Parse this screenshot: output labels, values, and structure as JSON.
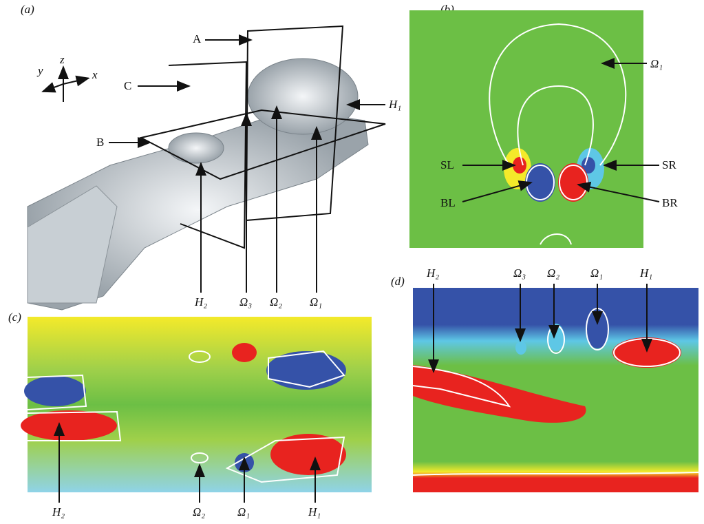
{
  "panels": [
    {
      "label": "(a)",
      "axes": [
        "y",
        "z",
        "x"
      ],
      "planes": [
        "A",
        "C",
        "B"
      ],
      "annotations": [
        "H₁",
        "H₂",
        "Ω₃",
        "Ω₂",
        "Ω₁"
      ]
    },
    {
      "label": "(b)",
      "annotations": [
        "Ω₁",
        "SL",
        "SR",
        "BL",
        "BR"
      ]
    },
    {
      "label": "(c)",
      "annotations": [
        "H₂",
        "Ω₂",
        "Ω₁",
        "H₁"
      ]
    },
    {
      "label": "(d)",
      "annotations": [
        "H₂",
        "Ω₃",
        "Ω₂",
        "Ω₁",
        "H₁"
      ]
    }
  ]
}
